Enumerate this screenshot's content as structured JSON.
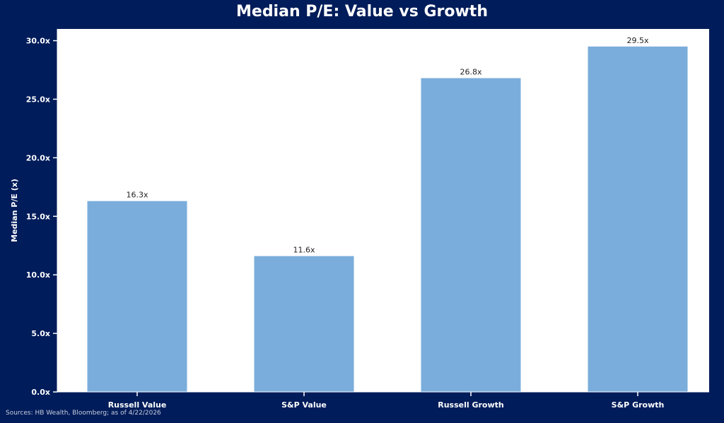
{
  "chart_data": {
    "type": "bar",
    "title": "Median P/E: Value vs Growth",
    "xlabel": "",
    "ylabel": "Median P/E (x)",
    "categories": [
      "Russell Value",
      "S&P Value",
      "Russell Growth",
      "S&P Growth"
    ],
    "values": [
      16.3,
      11.6,
      26.8,
      29.5
    ],
    "data_labels": [
      "16.3x",
      "11.6x",
      "26.8x",
      "29.5x"
    ],
    "ylim": [
      0,
      31
    ],
    "yticks": [
      0,
      5,
      10,
      15,
      20,
      25,
      30
    ],
    "ytick_labels": [
      "0.0x",
      "5.0x",
      "10.0x",
      "15.0x",
      "20.0x",
      "25.0x",
      "30.0x"
    ],
    "grid": false,
    "legend": "none",
    "colors": {
      "bar": "#7aaddb",
      "background": "#001c5a",
      "plot_background": "#ffffff"
    }
  },
  "footer": {
    "source": "Sources: HB Wealth, Bloomberg; as of 4/22/2026"
  }
}
